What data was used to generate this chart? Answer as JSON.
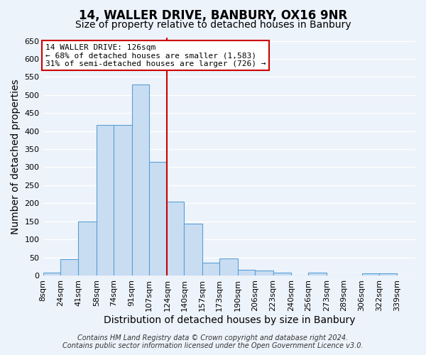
{
  "title": "14, WALLER DRIVE, BANBURY, OX16 9NR",
  "subtitle": "Size of property relative to detached houses in Banbury",
  "xlabel": "Distribution of detached houses by size in Banbury",
  "ylabel": "Number of detached properties",
  "bar_left_edges": [
    8,
    24,
    41,
    58,
    74,
    91,
    107,
    124,
    140,
    157,
    173,
    190,
    206,
    223,
    240,
    256,
    273,
    289,
    306,
    322
  ],
  "bar_heights": [
    8,
    45,
    150,
    417,
    417,
    530,
    315,
    205,
    143,
    35,
    48,
    15,
    13,
    7,
    0,
    7,
    0,
    0,
    5,
    5
  ],
  "bar_widths": [
    16,
    17,
    17,
    16,
    17,
    16,
    17,
    16,
    17,
    16,
    17,
    16,
    17,
    17,
    16,
    17,
    16,
    17,
    16,
    17
  ],
  "bar_color": "#c9ddf2",
  "bar_edge_color": "#5a9fd4",
  "marker_x": 124,
  "marker_color": "#cc0000",
  "ylim": [
    0,
    660
  ],
  "yticks": [
    0,
    50,
    100,
    150,
    200,
    250,
    300,
    350,
    400,
    450,
    500,
    550,
    600,
    650
  ],
  "x_tick_labels": [
    "8sqm",
    "24sqm",
    "41sqm",
    "58sqm",
    "74sqm",
    "91sqm",
    "107sqm",
    "124sqm",
    "140sqm",
    "157sqm",
    "173sqm",
    "190sqm",
    "206sqm",
    "223sqm",
    "240sqm",
    "256sqm",
    "273sqm",
    "289sqm",
    "306sqm",
    "322sqm",
    "339sqm"
  ],
  "x_tick_positions": [
    8,
    24,
    41,
    58,
    74,
    91,
    107,
    124,
    140,
    157,
    173,
    190,
    206,
    223,
    240,
    256,
    273,
    289,
    306,
    322,
    339
  ],
  "xlim_left": 8,
  "xlim_right": 356,
  "annotation_title": "14 WALLER DRIVE: 126sqm",
  "annotation_line1": "← 68% of detached houses are smaller (1,583)",
  "annotation_line2": "31% of semi-detached houses are larger (726) →",
  "annotation_box_color": "#ffffff",
  "annotation_box_edge_color": "#cc0000",
  "footer_line1": "Contains HM Land Registry data © Crown copyright and database right 2024.",
  "footer_line2": "Contains public sector information licensed under the Open Government Licence v3.0.",
  "bg_color": "#edf3fb",
  "plot_bg_color": "#edf3fb",
  "grid_color": "#ffffff",
  "title_fontsize": 12,
  "subtitle_fontsize": 10,
  "axis_label_fontsize": 10,
  "tick_fontsize": 8,
  "annotation_fontsize": 8,
  "footer_fontsize": 7
}
